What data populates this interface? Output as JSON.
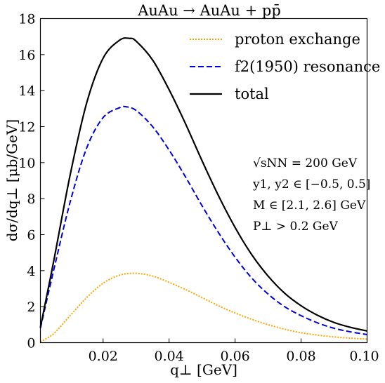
{
  "chart_data": {
    "type": "line",
    "title": "AuAu → AuAu + pp̄",
    "xlabel": "q⊥ [GeV]",
    "ylabel": "dσ/dq⊥ [μb/GeV]",
    "xlim": [
      0.001,
      0.1
    ],
    "ylim": [
      0,
      18
    ],
    "xticks": [
      0.02,
      0.04,
      0.06,
      0.08,
      0.1
    ],
    "xtick_labels": [
      "0.02",
      "0.04",
      "0.06",
      "0.08",
      "0.10"
    ],
    "yticks": [
      0,
      2,
      4,
      6,
      8,
      10,
      12,
      14,
      16,
      18
    ],
    "ytick_labels": [
      "0",
      "2",
      "4",
      "6",
      "8",
      "10",
      "12",
      "14",
      "16",
      "18"
    ],
    "grid": false,
    "legend_position": "top-right",
    "annotations": [
      "√sNN = 200 GeV",
      "y1, y2 ∈ [−0.5, 0.5]",
      "M ∈ [2.1, 2.6] GeV",
      "P⊥ > 0.2 GeV"
    ],
    "series": [
      {
        "name": "proton exchange",
        "color": "#ffa500",
        "style": "dotted",
        "x": [
          0.001,
          0.005,
          0.01,
          0.015,
          0.02,
          0.025,
          0.03,
          0.035,
          0.04,
          0.045,
          0.05,
          0.055,
          0.06,
          0.065,
          0.07,
          0.075,
          0.08,
          0.085,
          0.09,
          0.095,
          0.1
        ],
        "y": [
          0.05,
          0.5,
          1.5,
          2.5,
          3.3,
          3.75,
          3.85,
          3.7,
          3.35,
          2.95,
          2.5,
          2.05,
          1.65,
          1.3,
          1.0,
          0.75,
          0.55,
          0.42,
          0.32,
          0.25,
          0.2
        ]
      },
      {
        "name": "f2(1950) resonance",
        "color": "#0000dd",
        "style": "dashed",
        "x": [
          0.001,
          0.005,
          0.01,
          0.015,
          0.02,
          0.025,
          0.027,
          0.03,
          0.035,
          0.04,
          0.045,
          0.05,
          0.055,
          0.06,
          0.065,
          0.07,
          0.075,
          0.08,
          0.085,
          0.09,
          0.095,
          0.1
        ],
        "y": [
          0.8,
          4.0,
          7.8,
          10.8,
          12.5,
          13.05,
          13.1,
          12.9,
          12.0,
          10.7,
          9.2,
          7.6,
          6.1,
          4.75,
          3.6,
          2.7,
          2.0,
          1.5,
          1.1,
          0.8,
          0.6,
          0.45
        ]
      },
      {
        "name": "total",
        "color": "#000000",
        "style": "solid",
        "x": [
          0.001,
          0.005,
          0.01,
          0.015,
          0.02,
          0.025,
          0.028,
          0.03,
          0.035,
          0.04,
          0.045,
          0.05,
          0.055,
          0.06,
          0.065,
          0.07,
          0.075,
          0.08,
          0.085,
          0.09,
          0.095,
          0.1
        ],
        "y": [
          0.85,
          4.5,
          9.3,
          13.3,
          15.8,
          16.8,
          16.9,
          16.75,
          15.7,
          14.05,
          12.15,
          10.1,
          8.15,
          6.4,
          4.9,
          3.7,
          2.75,
          2.05,
          1.52,
          1.12,
          0.85,
          0.65
        ]
      }
    ]
  }
}
